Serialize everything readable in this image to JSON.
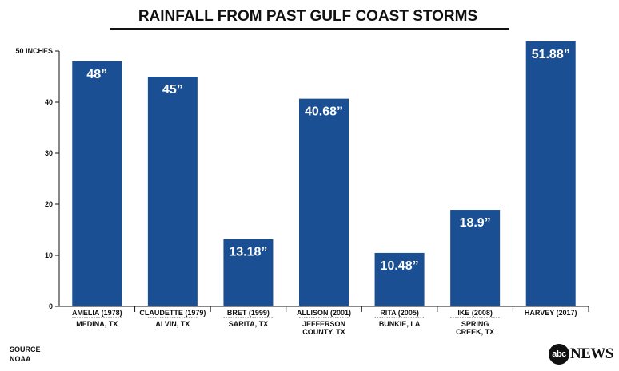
{
  "logo": {
    "mark": "abc",
    "word": "NEWS"
  },
  "source": {
    "label": "SOURCE",
    "value": "NOAA"
  },
  "colors": {
    "bar": "#1a4f93",
    "text": "#111111",
    "bar_text": "#ffffff"
  },
  "chart_data": {
    "type": "bar",
    "title": "RAINFALL FROM PAST GULF COAST STORMS",
    "xlabel": "",
    "ylabel": "",
    "ylim": [
      0,
      50
    ],
    "yticks": [
      0,
      10,
      20,
      30,
      40,
      50
    ],
    "ytick_labels": [
      "0",
      "10",
      "20",
      "30",
      "40",
      "50 INCHES"
    ],
    "grid": false,
    "categories": [
      {
        "storm": "AMELIA (1978)",
        "location": [
          "MEDINA, TX"
        ]
      },
      {
        "storm": "CLAUDETTE (1979)",
        "location": [
          "ALVIN, TX"
        ]
      },
      {
        "storm": "BRET (1999)",
        "location": [
          "SARITA, TX"
        ]
      },
      {
        "storm": "ALLISON (2001)",
        "location": [
          "JEFFERSON",
          "COUNTY, TX"
        ]
      },
      {
        "storm": "RITA (2005)",
        "location": [
          "BUNKIE, LA"
        ]
      },
      {
        "storm": "IKE (2008)",
        "location": [
          "SPRING",
          "CREEK, TX"
        ]
      },
      {
        "storm": "HARVEY (2017)",
        "location": []
      }
    ],
    "values": [
      48,
      45,
      13.18,
      40.68,
      10.48,
      18.9,
      51.88
    ],
    "value_labels": [
      "48”",
      "45”",
      "13.18”",
      "40.68”",
      "10.48”",
      "18.9”",
      "51.88”"
    ]
  }
}
